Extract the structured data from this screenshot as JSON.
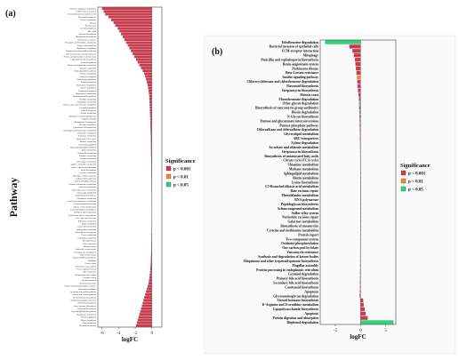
{
  "figure": {
    "y_title": "Pathway",
    "legend_title": "Significance",
    "legend": [
      {
        "label": "p < 0.001",
        "color": "#d7374a"
      },
      {
        "label": "p < 0.01",
        "color": "#f28c28"
      },
      {
        "label": "p < 0.05",
        "color": "#2bd67a"
      }
    ]
  },
  "chart_data": [
    {
      "type": "bar",
      "orientation": "horizontal",
      "panel_label": "(a)",
      "xlabel": "logFC",
      "ylabel": "Pathway",
      "xlim": [
        -6.5,
        1.2
      ],
      "xticks": [
        -6,
        -4,
        -2,
        0
      ],
      "grid": false,
      "legend_position": "right",
      "categories": [
        "Limonene and pinene degradation",
        "ECM-receptor interaction",
        "Bacterial invasion of epithelial cells",
        "Flavonoid biosynthesis",
        "Flavone degradation",
        "Meiosis",
        "Meiosis yeast",
        "Steroid biosynthesis",
        "Ether lipid",
        "Aflatoxin biosynthesis",
        "Monobactam biosynthesis",
        "Beta-Lactam resistance",
        "D-Arginine and D-ornithine metabolism",
        "Lipoic acid metabolism",
        "Naphthalene degradation",
        "Porphyrin and chlorophyll metabolism",
        "Chlorocyclohexane and chlorobenzene",
        "Pentose and glucuronate interconversions",
        "Lipopolysaccharide biosynthesis",
        "Zeatin biosynthesis",
        "Taurine and hypotaurine metabolism",
        "Nitrogen metabolism",
        "Indole alkaloid biosynthesis",
        "Toluene degradation",
        "Fatty acid elongation",
        "Caprolactam degradation",
        "Retinol metabolism",
        "Nitrotoluene degradation",
        "Styrene degradation",
        "Bisphenol degradation",
        "Phenylalanine metabolism",
        "Phenylpropanoid biosynthesis",
        "Histidine metabolism",
        "Tryptophan metabolism",
        "Valine, leucine and isoleucine degradation",
        "Geraniol degradation",
        "Folate biosynthesis",
        "Proline metabolism",
        "Ubiquinone and terpenoid-quinone",
        "Flagellar assembly",
        "Biosynthesis of ansamycins",
        "Benzoate degradation",
        "Cyanoamino acid metabolism",
        "Glyoxylate and dicarboxylate metabolism",
        "Propanoate metabolism",
        "Butanoate metabolism",
        "Citrate cycle (TCA cycle)",
        "Methane metabolism",
        "Fatty acid degradation",
        "Glycerophospholipid metabolism",
        "Sulfur metabolism",
        "Vitamin B6 metabolism",
        "Thiamine metabolism",
        "Tyrosine metabolism",
        "beta-Alanine metabolism",
        "Arginine and proline metabolism",
        "Alanine, aspartate and glutamate",
        "Lysine biosynthesis",
        "Pyruvate metabolism",
        "Glycolysis / Gluconeogenesis",
        "Carbon fixation pathways",
        "Pentose phosphate pathway",
        "Fructose and mannose metabolism",
        "Galactose metabolism",
        "Starch and sucrose metabolism",
        "Amino sugar metabolism",
        "Streptomycin biosynthesis",
        "Glutathione metabolism",
        "Cysteine and methionine metabolism",
        "Selenocompound metabolism",
        "Glycine, serine and threonine",
        "Terpenoid backbone biosynthesis",
        "Nicotinate and nicotinamide",
        "Pantothenate and CoA biosynthesis",
        "One carbon pool by folate",
        "Riboflavin metabolism",
        "Biotin metabolism",
        "Lipoic acid metabolism",
        "Sphingolipid metabolism",
        "Peptidoglycan biosynthesis",
        "Purine metabolism",
        "Pyrimidine metabolism",
        "RNA polymerase",
        "DNA replication",
        "Mismatch repair",
        "Nucleotide excision repair",
        "Homologous recombination",
        "Base excision repair",
        "Aminoacyl-tRNA biosynthesis",
        "Ribosome",
        "Protein export",
        "Bacterial secretion system",
        "Two-component system",
        "ABC transporters",
        "Phosphotransferase system",
        "Quorum sensing",
        "Biofilm formation",
        "Bacterial chemotaxis",
        "Cationic antimicrobial peptide resistance",
        "Vancomycin resistance",
        "Secondary bile acid biosynthesis",
        "Primary bile acid biosynthesis",
        "Steroid hormone biosynthesis",
        "Nonribosomal peptide structures",
        "Neomycin biosynthesis",
        "Insect hormone biosynthesis",
        "Carotenoid biosynthesis",
        "Glycosphingolipid biosynthesis",
        "Phosphonate metabolism",
        "Dioxin degradation",
        "Xylene degradation",
        "Drug metabolism",
        "Unclassified pathway"
      ],
      "values": [
        -6.0,
        -5.8,
        -5.6,
        -5.2,
        -4.9,
        -4.6,
        -4.4,
        -4.1,
        -3.9,
        -3.7,
        -3.5,
        -3.3,
        -3.1,
        -2.9,
        -2.7,
        -2.5,
        -2.3,
        -2.1,
        -1.9,
        -1.7,
        -1.5,
        -1.3,
        -1.1,
        -0.9,
        -0.8,
        -0.7,
        -0.6,
        -0.5,
        -0.45,
        -0.4,
        -0.35,
        -0.3,
        -0.3,
        -0.28,
        -0.26,
        -0.25,
        -0.24,
        -0.22,
        -0.2,
        -0.19,
        -0.18,
        -0.17,
        -0.16,
        -0.15,
        -0.14,
        -0.13,
        -0.12,
        -0.12,
        -0.11,
        -0.1,
        -0.1,
        -0.09,
        -0.09,
        -0.08,
        -0.08,
        -0.07,
        -0.07,
        -0.06,
        -0.06,
        -0.05,
        -0.05,
        -0.05,
        -0.04,
        -0.04,
        -0.04,
        -0.03,
        -0.03,
        -0.03,
        -0.03,
        -0.02,
        -0.02,
        -0.02,
        -0.02,
        -0.02,
        -0.02,
        -0.02,
        -0.02,
        -0.03,
        -0.03,
        -0.03,
        -0.04,
        -0.04,
        -0.05,
        -0.05,
        -0.06,
        -0.07,
        -0.08,
        -0.09,
        -0.1,
        -0.12,
        -0.14,
        -0.16,
        -0.18,
        -0.2,
        -0.25,
        -0.3,
        -0.35,
        -0.4,
        -0.5,
        -0.6,
        -0.7,
        -0.8,
        -0.9,
        -1.0,
        -1.1,
        -1.2,
        -1.3,
        -1.4,
        -1.5,
        -1.6,
        -1.7,
        -1.8,
        -1.9
      ],
      "significance": "p < 0.001 for all bars except a few near zero marked p < 0.01 / p < 0.05"
    },
    {
      "type": "bar",
      "orientation": "horizontal",
      "panel_label": "(b)",
      "xlabel": "logFC",
      "ylabel": "Pathway",
      "xlim": [
        -8,
        7
      ],
      "xticks": [
        -5,
        0,
        5
      ],
      "grid": false,
      "legend_position": "right",
      "categories": [
        "Ethylbenzene degradation",
        "Bacterial invasion of epithelial cells",
        "ECM-receptor interaction",
        "Mitophagy",
        "Penicillin and cephalosporin biosynthesis",
        "Renin-angiotensin system",
        "Parkinsons disease",
        "Beta-Lactam resistance",
        "Insulin signaling pathway",
        "Chlorocyclohexane and chlorobenzene degradation",
        "Flavonoid biosynthesis",
        "Streptomycin biosynthesis",
        "Meiosis yeast",
        "Fluorobenzoate degradation",
        "Other glycan degradation",
        "Biosynthesis of vancomycin group antibiotics",
        "Dioxin degradation",
        "N-Glycan biosynthesis",
        "Pentose and glucuronate interconversions",
        "Pentose phosphate pathway",
        "Chloroalkane and chloroalkene degradation",
        "Glycerolipid metabolism",
        "ABC transporters",
        "Xylene degradation",
        "Ascorbate and aldarate metabolism",
        "Streptomycin biosynthesis",
        "Biosynthesis of unsaturated fatty acids",
        "Citrate cycle (TCA cycle)",
        "Thiamine metabolism",
        "Methane metabolism",
        "Sphingolipid metabolism",
        "Biotin metabolism",
        "Lysine biosynthesis",
        "C5-Branched dibasic acid metabolism",
        "Base excision repair",
        "Phenylalanine metabolism",
        "RNA polymerase",
        "Peptidoglycan biosynthesis",
        "Selenocompound metabolism",
        "Sulfur relay system",
        "Nucleotide excision repair",
        "Galactose metabolism",
        "Biosynthesis of ansamycins",
        "Cysteine and methionine metabolism",
        "Protein export",
        "Two-component system",
        "Oxidative phosphorylation",
        "One carbon pool by folate",
        "Vancomycin resistance",
        "Synthesis and degradation of ketone bodies",
        "Ubiquinone and other terpenoid-quinone biosynthesis",
        "Flagellar assembly",
        "Protein processing in endoplasmic reticulum",
        "Geraniol degradation",
        "Primary bile acid biosynthesis",
        "Secondary bile acid biosynthesis",
        "Carotenoid biosynthesis",
        "Apoptosis",
        "Glycosaminoglycan degradation",
        "Steroid hormone biosynthesis",
        "D-Arginine and D-ornithine metabolism",
        "Lipopolysaccharide biosynthesis",
        "Apoptosis",
        "Protein digestion and absorption",
        "Bisphenol degradation"
      ],
      "values": [
        -7.0,
        -2.2,
        -1.6,
        -1.3,
        -1.1,
        -1.0,
        -0.9,
        -0.8,
        -0.7,
        -0.65,
        -0.6,
        -0.5,
        -0.4,
        -0.3,
        -0.3,
        -0.25,
        -0.2,
        -0.2,
        -0.15,
        -0.15,
        -0.12,
        -0.1,
        -0.1,
        -0.08,
        -0.08,
        -0.06,
        -0.06,
        -0.05,
        -0.05,
        -0.05,
        -0.04,
        -0.04,
        -0.04,
        -0.03,
        -0.03,
        -0.03,
        -0.03,
        -0.03,
        -0.03,
        -0.03,
        -0.03,
        -0.03,
        -0.04,
        -0.04,
        -0.04,
        -0.05,
        -0.05,
        -0.05,
        -0.06,
        -0.06,
        -0.06,
        -0.07,
        -0.07,
        -0.08,
        -0.08,
        -0.09,
        -0.1,
        -0.12,
        -0.15,
        0.5,
        0.6,
        0.8,
        1.0,
        1.4,
        6.5
      ],
      "significance_colors": [
        "p < 0.05",
        "p < 0.001",
        "p < 0.001",
        "p < 0.001",
        "p < 0.001",
        "p < 0.001",
        "p < 0.001",
        "p < 0.001",
        "p < 0.01",
        "p < 0.001",
        "p < 0.001",
        "p < 0.001",
        "p < 0.001",
        "p < 0.001",
        "p < 0.05",
        "p < 0.001",
        "p < 0.001",
        "p < 0.001",
        "p < 0.001",
        "p < 0.001",
        "p < 0.001",
        "p < 0.001",
        "p < 0.001",
        "p < 0.001",
        "p < 0.001",
        "p < 0.001",
        "p < 0.001",
        "p < 0.001",
        "p < 0.001",
        "p < 0.001",
        "p < 0.001",
        "p < 0.001",
        "p < 0.001",
        "p < 0.001",
        "p < 0.001",
        "p < 0.001",
        "p < 0.001",
        "p < 0.001",
        "p < 0.001",
        "p < 0.001",
        "p < 0.001",
        "p < 0.001",
        "p < 0.001",
        "p < 0.001",
        "p < 0.001",
        "p < 0.001",
        "p < 0.001",
        "p < 0.001",
        "p < 0.001",
        "p < 0.001",
        "p < 0.001",
        "p < 0.001",
        "p < 0.001",
        "p < 0.001",
        "p < 0.001",
        "p < 0.001",
        "p < 0.001",
        "p < 0.001",
        "p < 0.001",
        "p < 0.001",
        "p < 0.001",
        "p < 0.001",
        "p < 0.001",
        "p < 0.001",
        "p < 0.05"
      ]
    }
  ]
}
